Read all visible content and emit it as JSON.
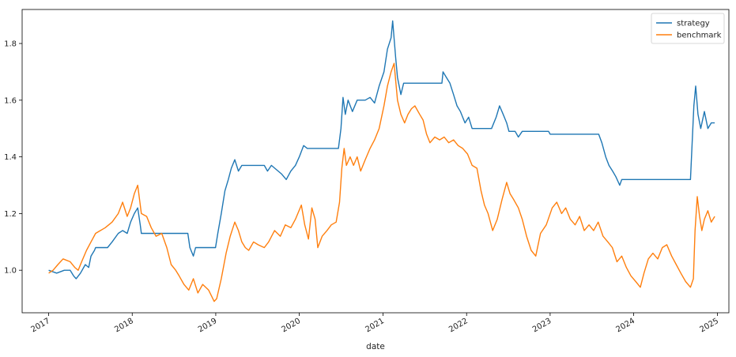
{
  "chart_data": {
    "type": "line",
    "title": "",
    "xlabel": "date",
    "ylabel": "",
    "xlim": [
      "2016-09-07",
      "2025-02-20"
    ],
    "ylim": [
      0.85,
      1.92
    ],
    "x_ticks": [
      "2017-01-01",
      "2018-01-01",
      "2019-01-01",
      "2020-01-01",
      "2021-01-01",
      "2022-01-01",
      "2023-01-01",
      "2024-01-01",
      "2025-01-01"
    ],
    "x_tick_labels": [
      "2017",
      "2018",
      "2019",
      "2020",
      "2021",
      "2022",
      "2023",
      "2024",
      "2025"
    ],
    "y_ticks": [
      1.0,
      1.2,
      1.4,
      1.6,
      1.8
    ],
    "y_tick_labels": [
      "1.0",
      "1.2",
      "1.4",
      "1.6",
      "1.8"
    ],
    "grid": false,
    "legend_position": "top-right",
    "series": [
      {
        "name": "strategy",
        "color": "#1f77b4",
        "points": [
          [
            "2017-01-01",
            1.0
          ],
          [
            "2017-02-05",
            0.99
          ],
          [
            "2017-03-10",
            1.0
          ],
          [
            "2017-04-05",
            1.0
          ],
          [
            "2017-04-20",
            0.98
          ],
          [
            "2017-05-01",
            0.97
          ],
          [
            "2017-05-20",
            0.99
          ],
          [
            "2017-06-10",
            1.02
          ],
          [
            "2017-06-25",
            1.01
          ],
          [
            "2017-07-05",
            1.05
          ],
          [
            "2017-07-20",
            1.07
          ],
          [
            "2017-07-25",
            1.08
          ],
          [
            "2017-09-15",
            1.08
          ],
          [
            "2017-10-05",
            1.1
          ],
          [
            "2017-11-01",
            1.13
          ],
          [
            "2017-11-20",
            1.14
          ],
          [
            "2017-12-10",
            1.13
          ],
          [
            "2017-12-25",
            1.17
          ],
          [
            "2018-01-10",
            1.2
          ],
          [
            "2018-01-25",
            1.22
          ],
          [
            "2018-02-05",
            1.16
          ],
          [
            "2018-02-10",
            1.13
          ],
          [
            "2018-09-01",
            1.13
          ],
          [
            "2018-09-10",
            1.08
          ],
          [
            "2018-09-25",
            1.05
          ],
          [
            "2018-10-05",
            1.08
          ],
          [
            "2018-12-31",
            1.08
          ],
          [
            "2019-01-10",
            1.13
          ],
          [
            "2019-01-25",
            1.2
          ],
          [
            "2019-02-10",
            1.28
          ],
          [
            "2019-02-25",
            1.32
          ],
          [
            "2019-03-10",
            1.36
          ],
          [
            "2019-03-25",
            1.39
          ],
          [
            "2019-04-10",
            1.35
          ],
          [
            "2019-04-25",
            1.37
          ],
          [
            "2019-08-01",
            1.37
          ],
          [
            "2019-08-15",
            1.35
          ],
          [
            "2019-09-01",
            1.37
          ],
          [
            "2019-10-15",
            1.34
          ],
          [
            "2019-11-05",
            1.32
          ],
          [
            "2019-11-25",
            1.35
          ],
          [
            "2019-12-15",
            1.37
          ],
          [
            "2020-01-01",
            1.4
          ],
          [
            "2020-01-20",
            1.44
          ],
          [
            "2020-02-05",
            1.43
          ],
          [
            "2020-06-20",
            1.43
          ],
          [
            "2020-07-01",
            1.5
          ],
          [
            "2020-07-10",
            1.61
          ],
          [
            "2020-07-20",
            1.55
          ],
          [
            "2020-08-01",
            1.6
          ],
          [
            "2020-08-20",
            1.56
          ],
          [
            "2020-09-10",
            1.6
          ],
          [
            "2020-10-15",
            1.6
          ],
          [
            "2020-11-05",
            1.61
          ],
          [
            "2020-11-25",
            1.59
          ],
          [
            "2020-12-15",
            1.65
          ],
          [
            "2021-01-05",
            1.7
          ],
          [
            "2021-01-20",
            1.78
          ],
          [
            "2021-02-05",
            1.82
          ],
          [
            "2021-02-12",
            1.88
          ],
          [
            "2021-02-25",
            1.75
          ],
          [
            "2021-03-05",
            1.68
          ],
          [
            "2021-03-20",
            1.62
          ],
          [
            "2021-04-01",
            1.66
          ],
          [
            "2021-09-15",
            1.66
          ],
          [
            "2021-09-20",
            1.7
          ],
          [
            "2021-10-05",
            1.68
          ],
          [
            "2021-10-20",
            1.66
          ],
          [
            "2021-11-05",
            1.62
          ],
          [
            "2021-11-20",
            1.58
          ],
          [
            "2021-12-05",
            1.56
          ],
          [
            "2021-12-25",
            1.52
          ],
          [
            "2022-01-10",
            1.54
          ],
          [
            "2022-01-25",
            1.5
          ],
          [
            "2022-04-20",
            1.5
          ],
          [
            "2022-05-10",
            1.54
          ],
          [
            "2022-05-25",
            1.58
          ],
          [
            "2022-06-10",
            1.55
          ],
          [
            "2022-06-25",
            1.52
          ],
          [
            "2022-07-05",
            1.49
          ],
          [
            "2022-08-01",
            1.49
          ],
          [
            "2022-08-15",
            1.47
          ],
          [
            "2022-09-01",
            1.49
          ],
          [
            "2022-12-25",
            1.49
          ],
          [
            "2023-01-01",
            1.48
          ],
          [
            "2023-08-01",
            1.48
          ],
          [
            "2023-08-15",
            1.45
          ],
          [
            "2023-09-01",
            1.4
          ],
          [
            "2023-09-15",
            1.37
          ],
          [
            "2023-10-01",
            1.35
          ],
          [
            "2023-10-15",
            1.33
          ],
          [
            "2023-11-01",
            1.3
          ],
          [
            "2023-11-10",
            1.32
          ],
          [
            "2024-09-05",
            1.32
          ],
          [
            "2024-09-20",
            1.58
          ],
          [
            "2024-09-28",
            1.65
          ],
          [
            "2024-10-08",
            1.55
          ],
          [
            "2024-10-20",
            1.5
          ],
          [
            "2024-11-05",
            1.56
          ],
          [
            "2024-11-20",
            1.5
          ],
          [
            "2024-12-05",
            1.52
          ],
          [
            "2024-12-20",
            1.52
          ]
        ]
      },
      {
        "name": "benchmark",
        "color": "#ff7f0e",
        "points": [
          [
            "2017-01-01",
            0.99
          ],
          [
            "2017-01-20",
            1.0
          ],
          [
            "2017-02-10",
            1.02
          ],
          [
            "2017-03-05",
            1.04
          ],
          [
            "2017-04-05",
            1.03
          ],
          [
            "2017-04-25",
            1.01
          ],
          [
            "2017-05-10",
            1.0
          ],
          [
            "2017-05-25",
            1.03
          ],
          [
            "2017-06-15",
            1.07
          ],
          [
            "2017-07-05",
            1.1
          ],
          [
            "2017-07-25",
            1.13
          ],
          [
            "2017-08-15",
            1.14
          ],
          [
            "2017-09-05",
            1.15
          ],
          [
            "2017-10-05",
            1.17
          ],
          [
            "2017-11-01",
            1.2
          ],
          [
            "2017-11-20",
            1.24
          ],
          [
            "2017-12-10",
            1.19
          ],
          [
            "2017-12-25",
            1.22
          ],
          [
            "2018-01-10",
            1.27
          ],
          [
            "2018-01-25",
            1.3
          ],
          [
            "2018-02-10",
            1.2
          ],
          [
            "2018-03-05",
            1.19
          ],
          [
            "2018-03-25",
            1.15
          ],
          [
            "2018-04-15",
            1.12
          ],
          [
            "2018-05-10",
            1.13
          ],
          [
            "2018-06-01",
            1.08
          ],
          [
            "2018-06-20",
            1.02
          ],
          [
            "2018-07-10",
            1.0
          ],
          [
            "2018-07-25",
            0.98
          ],
          [
            "2018-08-15",
            0.95
          ],
          [
            "2018-09-05",
            0.93
          ],
          [
            "2018-09-25",
            0.97
          ],
          [
            "2018-10-15",
            0.92
          ],
          [
            "2018-11-05",
            0.95
          ],
          [
            "2018-12-01",
            0.93
          ],
          [
            "2018-12-25",
            0.89
          ],
          [
            "2019-01-05",
            0.9
          ],
          [
            "2019-01-25",
            0.97
          ],
          [
            "2019-02-15",
            1.06
          ],
          [
            "2019-03-05",
            1.12
          ],
          [
            "2019-03-25",
            1.17
          ],
          [
            "2019-04-10",
            1.14
          ],
          [
            "2019-04-25",
            1.1
          ],
          [
            "2019-05-10",
            1.08
          ],
          [
            "2019-05-25",
            1.07
          ],
          [
            "2019-06-15",
            1.1
          ],
          [
            "2019-07-05",
            1.09
          ],
          [
            "2019-08-01",
            1.08
          ],
          [
            "2019-08-20",
            1.1
          ],
          [
            "2019-09-15",
            1.14
          ],
          [
            "2019-10-10",
            1.12
          ],
          [
            "2019-11-01",
            1.16
          ],
          [
            "2019-11-25",
            1.15
          ],
          [
            "2019-12-15",
            1.18
          ],
          [
            "2020-01-10",
            1.23
          ],
          [
            "2020-01-25",
            1.16
          ],
          [
            "2020-02-10",
            1.11
          ],
          [
            "2020-02-25",
            1.22
          ],
          [
            "2020-03-10",
            1.18
          ],
          [
            "2020-03-22",
            1.08
          ],
          [
            "2020-04-10",
            1.12
          ],
          [
            "2020-05-01",
            1.14
          ],
          [
            "2020-05-20",
            1.16
          ],
          [
            "2020-06-10",
            1.17
          ],
          [
            "2020-06-25",
            1.24
          ],
          [
            "2020-07-05",
            1.36
          ],
          [
            "2020-07-15",
            1.43
          ],
          [
            "2020-07-25",
            1.37
          ],
          [
            "2020-08-10",
            1.4
          ],
          [
            "2020-08-25",
            1.37
          ],
          [
            "2020-09-10",
            1.4
          ],
          [
            "2020-09-25",
            1.35
          ],
          [
            "2020-10-15",
            1.39
          ],
          [
            "2020-11-05",
            1.43
          ],
          [
            "2020-11-25",
            1.46
          ],
          [
            "2020-12-15",
            1.5
          ],
          [
            "2021-01-05",
            1.58
          ],
          [
            "2021-01-20",
            1.65
          ],
          [
            "2021-02-05",
            1.7
          ],
          [
            "2021-02-18",
            1.73
          ],
          [
            "2021-03-05",
            1.6
          ],
          [
            "2021-03-20",
            1.55
          ],
          [
            "2021-04-05",
            1.52
          ],
          [
            "2021-04-20",
            1.55
          ],
          [
            "2021-05-05",
            1.57
          ],
          [
            "2021-05-20",
            1.58
          ],
          [
            "2021-06-10",
            1.55
          ],
          [
            "2021-06-25",
            1.53
          ],
          [
            "2021-07-10",
            1.48
          ],
          [
            "2021-07-25",
            1.45
          ],
          [
            "2021-08-15",
            1.47
          ],
          [
            "2021-09-05",
            1.46
          ],
          [
            "2021-09-25",
            1.47
          ],
          [
            "2021-10-15",
            1.45
          ],
          [
            "2021-11-05",
            1.46
          ],
          [
            "2021-11-25",
            1.44
          ],
          [
            "2021-12-15",
            1.43
          ],
          [
            "2022-01-05",
            1.41
          ],
          [
            "2022-01-25",
            1.37
          ],
          [
            "2022-02-15",
            1.36
          ],
          [
            "2022-03-05",
            1.28
          ],
          [
            "2022-03-20",
            1.23
          ],
          [
            "2022-04-05",
            1.2
          ],
          [
            "2022-04-25",
            1.14
          ],
          [
            "2022-05-15",
            1.18
          ],
          [
            "2022-06-05",
            1.25
          ],
          [
            "2022-06-25",
            1.31
          ],
          [
            "2022-07-10",
            1.27
          ],
          [
            "2022-07-25",
            1.25
          ],
          [
            "2022-08-15",
            1.22
          ],
          [
            "2022-09-01",
            1.18
          ],
          [
            "2022-09-20",
            1.12
          ],
          [
            "2022-10-10",
            1.07
          ],
          [
            "2022-10-30",
            1.05
          ],
          [
            "2022-11-20",
            1.13
          ],
          [
            "2022-12-15",
            1.16
          ],
          [
            "2023-01-10",
            1.22
          ],
          [
            "2023-01-30",
            1.24
          ],
          [
            "2023-02-20",
            1.2
          ],
          [
            "2023-03-10",
            1.22
          ],
          [
            "2023-03-30",
            1.18
          ],
          [
            "2023-04-20",
            1.16
          ],
          [
            "2023-05-10",
            1.19
          ],
          [
            "2023-05-30",
            1.14
          ],
          [
            "2023-06-20",
            1.16
          ],
          [
            "2023-07-10",
            1.14
          ],
          [
            "2023-07-30",
            1.17
          ],
          [
            "2023-08-20",
            1.12
          ],
          [
            "2023-09-10",
            1.1
          ],
          [
            "2023-09-30",
            1.08
          ],
          [
            "2023-10-20",
            1.03
          ],
          [
            "2023-11-10",
            1.05
          ],
          [
            "2023-11-30",
            1.01
          ],
          [
            "2023-12-20",
            0.98
          ],
          [
            "2024-01-10",
            0.96
          ],
          [
            "2024-01-30",
            0.94
          ],
          [
            "2024-02-15",
            0.99
          ],
          [
            "2024-03-05",
            1.04
          ],
          [
            "2024-03-25",
            1.06
          ],
          [
            "2024-04-15",
            1.04
          ],
          [
            "2024-05-05",
            1.08
          ],
          [
            "2024-05-25",
            1.09
          ],
          [
            "2024-06-15",
            1.05
          ],
          [
            "2024-07-05",
            1.02
          ],
          [
            "2024-07-25",
            0.99
          ],
          [
            "2024-08-15",
            0.96
          ],
          [
            "2024-09-05",
            0.94
          ],
          [
            "2024-09-18",
            0.97
          ],
          [
            "2024-09-25",
            1.14
          ],
          [
            "2024-10-05",
            1.26
          ],
          [
            "2024-10-15",
            1.19
          ],
          [
            "2024-10-25",
            1.14
          ],
          [
            "2024-11-05",
            1.18
          ],
          [
            "2024-11-20",
            1.21
          ],
          [
            "2024-12-05",
            1.17
          ],
          [
            "2024-12-20",
            1.19
          ]
        ]
      }
    ]
  }
}
